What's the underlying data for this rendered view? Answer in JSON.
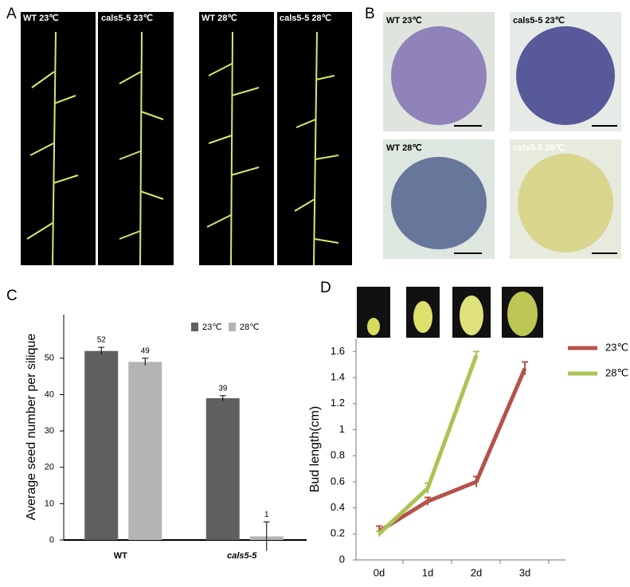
{
  "panel_labels": [
    "A",
    "B",
    "C",
    "D"
  ],
  "photos_a": [
    "WT 23℃",
    "cals5-5 23℃",
    "WT 28℃",
    "cals5-5 28℃"
  ],
  "photos_b": [
    "WT 23℃",
    "cals5-5 23℃",
    "WT 28℃",
    "cals5-5 28℃"
  ],
  "chart_data": [
    {
      "type": "bar",
      "ylabel": "Average seed number per silique",
      "categories": [
        "WT",
        "cals5-5"
      ],
      "series": [
        {
          "name": "23℃",
          "color": "#5f5f5f",
          "values": [
            52,
            39
          ],
          "errors": [
            1,
            0.7
          ]
        },
        {
          "name": "28℃",
          "color": "#b4b4b4",
          "values": [
            49,
            1
          ],
          "errors": [
            1,
            4
          ]
        }
      ],
      "ylim": [
        0,
        62
      ],
      "yticks": [
        0,
        10,
        20,
        30,
        40,
        50
      ]
    },
    {
      "type": "line",
      "ylabel": "Bud length(cm)",
      "categories": [
        "0d",
        "1d",
        "2d",
        "3d"
      ],
      "series": [
        {
          "name": "23℃",
          "color": "#b5524b",
          "values": [
            0.22,
            0.45,
            0.6,
            1.47
          ],
          "errors": [
            0.04,
            0.03,
            0.04,
            0.05
          ]
        },
        {
          "name": "28℃",
          "color": "#a9c452",
          "values": [
            0.2,
            0.55,
            1.57,
            null
          ],
          "errors": [
            0.02,
            0.04,
            0.03,
            null
          ]
        }
      ],
      "ylim": [
        0,
        1.7
      ],
      "yticks": [
        0,
        0.2,
        0.4,
        0.6,
        0.8,
        1,
        1.2,
        1.4,
        1.6
      ]
    }
  ]
}
